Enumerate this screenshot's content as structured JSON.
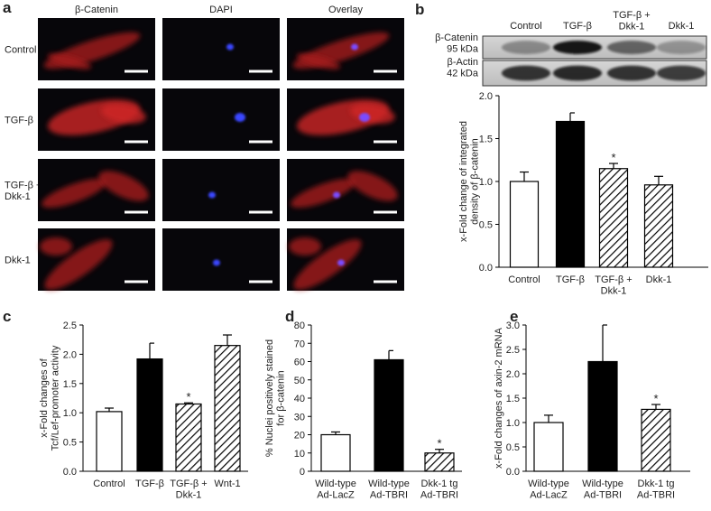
{
  "figure": {
    "panel_a": {
      "label": "a",
      "columns": [
        "β-Catenin",
        "DAPI",
        "Overlay"
      ],
      "rows": [
        "Control",
        "TGF-β",
        "TGF-β +\nDkk-1",
        "Dkk-1"
      ]
    },
    "blot": {
      "lanes": [
        "Control",
        "TGF-β",
        "TGF-β +\nDkk-1",
        "Dkk-1"
      ],
      "rows": [
        "β-Catenin\n95 kDa",
        "β-Actin\n42 kDa"
      ]
    }
  },
  "chart_data": [
    {
      "type": "bar",
      "panel": "b",
      "y_label": "x-Fold change of integrated\ndensity of β-catenin",
      "categories": [
        "Control",
        "TGF-β",
        "TGF-β +\nDkk-1",
        "Dkk-1"
      ],
      "values": [
        1.0,
        1.7,
        1.15,
        0.96
      ],
      "errors": [
        0.11,
        0.1,
        0.06,
        0.1
      ],
      "fills": [
        "white",
        "black",
        "hatch",
        "hatch"
      ],
      "significance": [
        null,
        null,
        "*",
        null
      ],
      "ylim": [
        0,
        2.0
      ],
      "yticks": [
        {
          "value": 0,
          "label": "0.0"
        },
        {
          "value": 0.5,
          "label": "0.5"
        },
        {
          "value": 1,
          "label": "1.0"
        },
        {
          "value": 1.5,
          "label": "1.5"
        },
        {
          "value": 2,
          "label": "2.0"
        }
      ]
    },
    {
      "type": "bar",
      "panel": "c",
      "y_label": "x-Fold changes of\nTcf/Lef-promoter activity",
      "categories": [
        "Control",
        "TGF-β",
        "TGF-β +\nDkk-1",
        "Wnt-1"
      ],
      "values": [
        1.02,
        1.92,
        1.15,
        2.15
      ],
      "errors": [
        0.06,
        0.27,
        0.02,
        0.18
      ],
      "fills": [
        "white",
        "black",
        "hatch",
        "hatch"
      ],
      "significance": [
        null,
        null,
        "*",
        null
      ],
      "ylim": [
        0,
        2.5
      ],
      "yticks": [
        {
          "value": 0,
          "label": "0.0"
        },
        {
          "value": 0.5,
          "label": "0.5"
        },
        {
          "value": 1,
          "label": "1.0"
        },
        {
          "value": 1.5,
          "label": "1.5"
        },
        {
          "value": 2,
          "label": "2.0"
        },
        {
          "value": 2.5,
          "label": "2.5"
        }
      ]
    },
    {
      "type": "bar",
      "panel": "d",
      "y_label": "% Nuclei positively stained\nfor β-catenin",
      "categories": [
        "Wild-type\nAd-LacZ",
        "Wild-type\nAd-TBRI",
        "Dkk-1 tg\nAd-TBRI"
      ],
      "values": [
        20,
        61,
        10
      ],
      "errors": [
        1.5,
        5,
        2
      ],
      "fills": [
        "white",
        "black",
        "hatch"
      ],
      "significance": [
        null,
        null,
        "*"
      ],
      "ylim": [
        0,
        80
      ],
      "yticks": [
        0,
        10,
        20,
        30,
        40,
        50,
        60,
        70,
        80
      ]
    },
    {
      "type": "bar",
      "panel": "e",
      "y_label": "x-Fold changes of axin-2 mRNA",
      "categories": [
        "Wild-type\nAd-LacZ",
        "Wild-type\nAd-TBRI",
        "Dkk-1 tg\nAd-TBRI"
      ],
      "values": [
        1.0,
        2.25,
        1.27
      ],
      "errors": [
        0.15,
        0.75,
        0.1
      ],
      "fills": [
        "white",
        "black",
        "hatch"
      ],
      "significance": [
        null,
        null,
        "*"
      ],
      "ylim": [
        0,
        3.0
      ],
      "yticks": [
        {
          "value": 0,
          "label": "0.0"
        },
        {
          "value": 0.5,
          "label": "0.5"
        },
        {
          "value": 1,
          "label": "1.0"
        },
        {
          "value": 1.5,
          "label": "1.5"
        },
        {
          "value": 2,
          "label": "2.0"
        },
        {
          "value": 2.5,
          "label": "2.5"
        },
        {
          "value": 3,
          "label": "3.0"
        }
      ]
    }
  ]
}
